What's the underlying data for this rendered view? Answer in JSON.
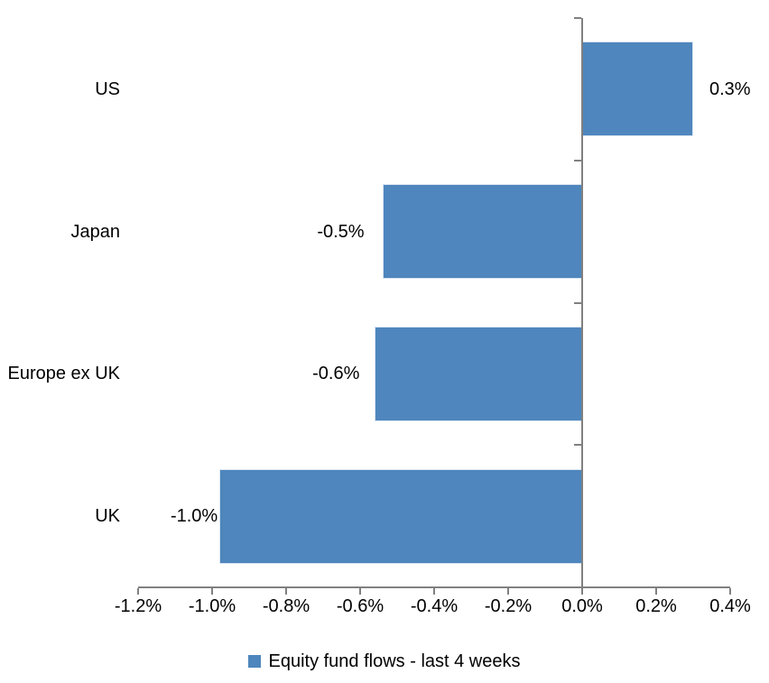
{
  "chart_data": {
    "type": "bar",
    "orientation": "horizontal",
    "title": "",
    "xlabel": "",
    "ylabel": "",
    "categories": [
      "US",
      "Japan",
      "Europe ex UK",
      "UK"
    ],
    "values": [
      0.3,
      -0.5,
      -0.6,
      -1.0
    ],
    "values_precise_pct": [
      0.3,
      -0.54,
      -0.56,
      -0.98
    ],
    "data_labels": [
      "0.3%",
      "-0.5%",
      "-0.6%",
      "-1.0%"
    ],
    "series_name": "Equity fund flows - last 4 weeks",
    "xlim": [
      -1.2,
      0.4
    ],
    "x_tick_step": 0.2,
    "x_tick_labels": [
      "-1.2%",
      "-1.0%",
      "-0.8%",
      "-0.6%",
      "-0.4%",
      "-0.2%",
      "0.0%",
      "0.2%",
      "0.4%"
    ],
    "grid": false,
    "legend_position": "bottom-center",
    "bar_color": "#4E86BD",
    "axis_color": "#808080",
    "text_color": "#000000"
  },
  "legend": {
    "label": "Equity fund flows - last 4 weeks",
    "marker_color": "#4E86BD"
  }
}
